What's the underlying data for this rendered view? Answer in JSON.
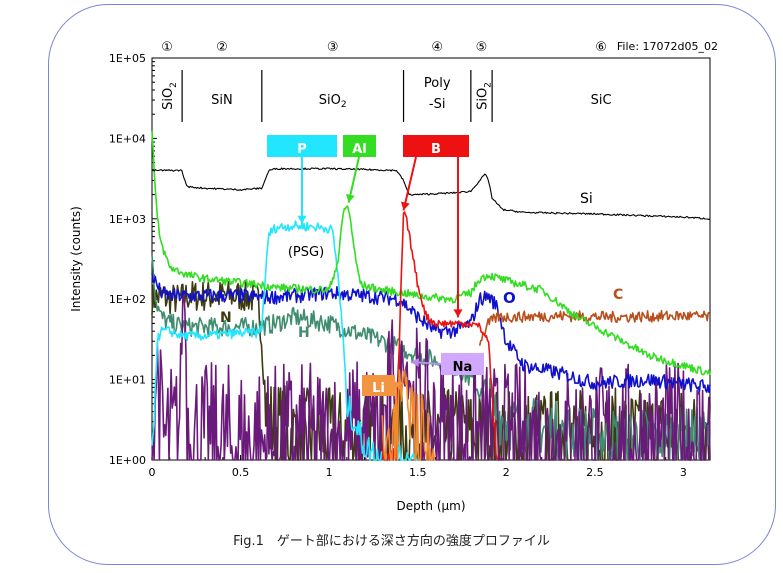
{
  "chart_data": {
    "type": "line",
    "title": "",
    "file_label": "File: 17072d05_02",
    "xlabel": "Depth (μm)",
    "ylabel": "Intensity (counts)",
    "xlim": [
      0,
      3.15
    ],
    "ylim_log10": [
      0,
      5
    ],
    "y_tick_labels": [
      "1E+00",
      "1E+01",
      "1E+02",
      "1E+03",
      "1E+04",
      "1E+05"
    ],
    "x_tick_values": [
      0,
      0.5,
      1,
      1.5,
      2,
      2.5,
      3
    ],
    "x_tick_labels": [
      "0",
      "0.5",
      "1",
      "1.5",
      "2",
      "2.5",
      "3"
    ],
    "grid": false,
    "layers": [
      {
        "num": "①",
        "name": "SiO2",
        "x0": 0,
        "x1": 0.17,
        "vertical": true
      },
      {
        "num": "②",
        "name": "SiN",
        "x0": 0.17,
        "x1": 0.62
      },
      {
        "num": "③",
        "name": "SiO2",
        "x0": 0.62,
        "x1": 1.42,
        "sub": true
      },
      {
        "num": "④",
        "name": "Poly\n-Si",
        "x0": 1.42,
        "x1": 1.8
      },
      {
        "num": "⑤",
        "name": "SiO2",
        "x0": 1.8,
        "x1": 1.92,
        "vertical": true
      },
      {
        "num": "⑥",
        "name": "SiC",
        "x0": 1.92,
        "x1": 3.15
      }
    ],
    "series": [
      {
        "name": "Si",
        "color": "#000000",
        "x": [
          0,
          0.17,
          0.18,
          0.2,
          0.3,
          0.5,
          0.62,
          0.66,
          0.7,
          1.0,
          1.2,
          1.38,
          1.42,
          1.45,
          1.5,
          1.7,
          1.8,
          1.85,
          1.88,
          1.9,
          1.92,
          1.98,
          2.1,
          2.5,
          3.0,
          3.15
        ],
        "y": [
          4000,
          4000,
          3200,
          2500,
          2400,
          2300,
          2400,
          4000,
          4200,
          4200,
          4100,
          4000,
          3000,
          2000,
          2000,
          2100,
          2200,
          3000,
          3600,
          3000,
          1800,
          1300,
          1200,
          1150,
          1050,
          1000
        ]
      },
      {
        "name": "P",
        "color": "#22e5ff",
        "x": [
          0,
          0.03,
          0.05,
          0.1,
          0.17,
          0.2,
          0.3,
          0.5,
          0.6,
          0.62,
          0.64,
          0.66,
          0.7,
          0.8,
          0.9,
          1.0,
          1.02,
          1.05,
          1.08,
          1.1,
          1.2,
          1.3,
          1.4,
          1.45,
          1.5
        ],
        "y": [
          1,
          30,
          40,
          40,
          35,
          35,
          35,
          38,
          38,
          45,
          200,
          650,
          780,
          820,
          800,
          760,
          700,
          200,
          30,
          5,
          1.5,
          1,
          1,
          1,
          1
        ]
      },
      {
        "name": "Al",
        "color": "#33dd22",
        "x": [
          0,
          0.02,
          0.03,
          0.05,
          0.1,
          0.2,
          0.3,
          0.5,
          0.62,
          0.7,
          1.0,
          1.05,
          1.08,
          1.1,
          1.12,
          1.15,
          1.18,
          1.3,
          1.42,
          1.5,
          1.7,
          1.8,
          1.85,
          1.9,
          2.0,
          2.2,
          2.4,
          2.6,
          2.8,
          3.0,
          3.15
        ],
        "y": [
          12000,
          2000,
          1000,
          500,
          250,
          200,
          180,
          160,
          150,
          140,
          130,
          300,
          1200,
          1500,
          1000,
          300,
          150,
          130,
          120,
          110,
          100,
          120,
          180,
          200,
          170,
          130,
          60,
          35,
          20,
          15,
          12
        ]
      },
      {
        "name": "B",
        "color": "#ee1111",
        "x": [
          1.3,
          1.38,
          1.4,
          1.42,
          1.44,
          1.46,
          1.5,
          1.55,
          1.6,
          1.7,
          1.8,
          1.85,
          1.9,
          1.93,
          1.95
        ],
        "y": [
          1,
          1,
          60,
          1200,
          900,
          500,
          150,
          60,
          50,
          50,
          50,
          45,
          30,
          3,
          1
        ]
      },
      {
        "name": "O",
        "color": "#1111cc",
        "x": [
          0,
          0.05,
          0.1,
          0.2,
          0.5,
          0.62,
          0.8,
          1.0,
          1.2,
          1.4,
          1.5,
          1.6,
          1.7,
          1.8,
          1.85,
          1.9,
          1.95,
          2.0,
          2.1,
          2.3,
          2.5,
          2.8,
          3.15
        ],
        "y": [
          200,
          120,
          110,
          110,
          110,
          105,
          110,
          120,
          110,
          100,
          60,
          40,
          40,
          50,
          100,
          110,
          80,
          30,
          15,
          12,
          9,
          10,
          8
        ]
      },
      {
        "name": "C",
        "color": "#b8501e",
        "x": [
          1.85,
          1.9,
          1.95,
          2.0,
          2.3,
          2.6,
          3.0,
          3.15
        ],
        "y": [
          30,
          50,
          60,
          60,
          62,
          60,
          62,
          60
        ]
      },
      {
        "name": "N",
        "color": "#3d3a10",
        "x": [
          0,
          0.05,
          0.1,
          0.15,
          0.2,
          0.3,
          0.5,
          0.6,
          0.62,
          0.65,
          0.8,
          1.0,
          1.5,
          2.0,
          3.15
        ],
        "y": [
          100,
          110,
          100,
          100,
          110,
          110,
          110,
          100,
          30,
          3,
          2,
          2,
          2,
          2,
          2
        ]
      },
      {
        "name": "H",
        "color": "#3f8c6f",
        "x": [
          0,
          0.02,
          0.05,
          0.1,
          0.2,
          0.4,
          0.6,
          0.7,
          0.8,
          1.0,
          1.2,
          1.3,
          1.4,
          1.5,
          1.7,
          1.8,
          1.9,
          2.0,
          2.5,
          3.15
        ],
        "y": [
          400,
          100,
          60,
          50,
          45,
          45,
          45,
          50,
          60,
          50,
          35,
          30,
          25,
          20,
          15,
          10,
          5,
          3,
          2,
          2
        ]
      },
      {
        "name": "Na",
        "color": "#6a1a7a",
        "x": [
          0,
          0.03,
          0.05,
          0.1,
          0.15,
          0.17,
          0.18,
          0.19,
          0.2,
          0.3,
          0.5,
          1.0,
          1.3,
          1.38,
          1.42,
          1.45,
          1.5,
          1.6,
          2.0,
          3.15
        ],
        "y": [
          1,
          20,
          2,
          1.5,
          2,
          50,
          150,
          40,
          2,
          1.5,
          1.5,
          1.5,
          2,
          10,
          20,
          12,
          4,
          2,
          1.5,
          1.5
        ]
      },
      {
        "name": "Li",
        "color": "#f08a2a",
        "x": [
          1.3,
          1.38,
          1.42,
          1.45,
          1.5,
          1.6
        ],
        "y": [
          1,
          3,
          9,
          6,
          2,
          1
        ]
      }
    ],
    "annotations": [
      {
        "text": "P",
        "target_series": "P",
        "bg": "#22e5ff",
        "color": "#ffffff"
      },
      {
        "text": "Al",
        "target_series": "Al",
        "bg": "#33dd22",
        "color": "#ffffff"
      },
      {
        "text": "B",
        "target_series": "B",
        "bg": "#ee1111",
        "color": "#ffffff"
      },
      {
        "text": "(PSG)",
        "color": "#000000"
      },
      {
        "text": "Si",
        "color": "#000000"
      },
      {
        "text": "C",
        "color": "#b8501e"
      },
      {
        "text": "O",
        "color": "#1111cc"
      },
      {
        "text": "N",
        "color": "#3d3a10"
      },
      {
        "text": "H",
        "color": "#3f8c6f"
      },
      {
        "text": "Na",
        "bg": "#d2a8ff",
        "color": "#000000"
      },
      {
        "text": "Li",
        "bg": "#f29440",
        "color": "#ffffff"
      }
    ]
  },
  "caption": "Fig.1　ゲート部における深さ方向の強度プロファイル"
}
